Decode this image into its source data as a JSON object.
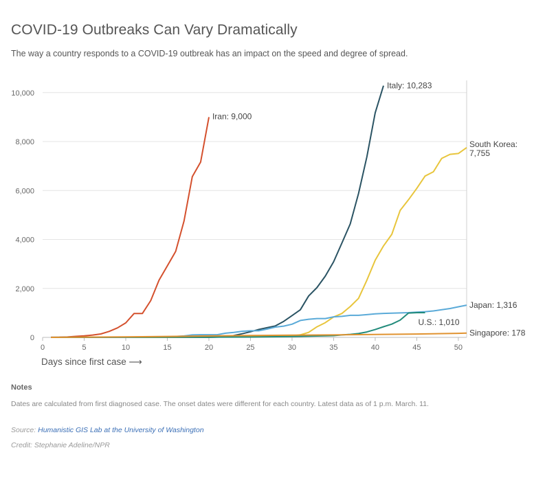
{
  "page": {
    "title": "COVID-19 Outbreaks Can Vary Dramatically",
    "subtitle": "The way a country responds to a COVID-19 outbreak has an impact on the speed and degree of spread.",
    "notes_heading": "Notes",
    "notes_text": "Dates are calculated from first diagnosed case. The onset dates were different for each country. Latest data as of 1 p.m. March. 11.",
    "source_label": "Source:",
    "source_link": "Humanistic GIS Lab at the University of Washington",
    "credit": "Credit: Stephanie Adeline/NPR"
  },
  "chart_data": {
    "type": "line",
    "title": "COVID-19 Outbreaks Can Vary Dramatically",
    "xlabel": "Days since first case ⟶",
    "ylabel": "",
    "xlim": [
      0,
      51
    ],
    "ylim": [
      0,
      10500
    ],
    "x_ticks": [
      0,
      5,
      10,
      15,
      20,
      25,
      30,
      35,
      40,
      45,
      50
    ],
    "y_ticks": [
      0,
      2000,
      4000,
      6000,
      8000,
      10000
    ],
    "y_tick_labels": [
      "0",
      "2,000",
      "4,000",
      "6,000",
      "8,000",
      "10,000"
    ],
    "grid": true,
    "series": [
      {
        "name": "Iran",
        "label": "Iran: 9,000",
        "color": "#d4502d",
        "x": [
          1,
          2,
          3,
          4,
          5,
          6,
          7,
          8,
          9,
          10,
          11,
          12,
          13,
          14,
          15,
          16,
          17,
          18,
          19,
          20
        ],
        "y": [
          2,
          5,
          18,
          43,
          61,
          95,
          141,
          245,
          388,
          593,
          978,
          978,
          1501,
          2336,
          2922,
          3513,
          4747,
          6566,
          7161,
          9000
        ]
      },
      {
        "name": "Italy",
        "label": "Italy: 10,283",
        "color": "#2a5363",
        "x": [
          1,
          5,
          10,
          15,
          20,
          22,
          23,
          24,
          25,
          26,
          27,
          28,
          29,
          30,
          31,
          32,
          33,
          34,
          35,
          36,
          37,
          38,
          39,
          40,
          41
        ],
        "y": [
          2,
          3,
          3,
          3,
          3,
          20,
          79,
          150,
          229,
          322,
          400,
          470,
          655,
          889,
          1128,
          1694,
          2036,
          2502,
          3089,
          3858,
          4636,
          5883,
          7375,
          9172,
          10283
        ]
      },
      {
        "name": "South Korea",
        "label": "South Korea: 7,755",
        "color": "#e8c53c",
        "x": [
          1,
          10,
          20,
          25,
          30,
          31,
          32,
          33,
          34,
          35,
          36,
          37,
          38,
          39,
          40,
          41,
          42,
          43,
          44,
          45,
          46,
          47,
          48,
          49,
          50,
          51
        ],
        "y": [
          1,
          3,
          10,
          30,
          60,
          104,
          204,
          433,
          602,
          833,
          977,
          1261,
          1595,
          2337,
          3150,
          3736,
          4212,
          5186,
          5621,
          6088,
          6593,
          6767,
          7313,
          7478,
          7513,
          7755
        ]
      },
      {
        "name": "Japan",
        "label": "Japan: 1,316",
        "color": "#5aaad8",
        "x": [
          1,
          10,
          15,
          16,
          17,
          18,
          19,
          20,
          21,
          22,
          23,
          24,
          25,
          26,
          27,
          28,
          29,
          30,
          31,
          32,
          33,
          34,
          35,
          36,
          37,
          38,
          39,
          40,
          41,
          42,
          43,
          44,
          45,
          46,
          47,
          48,
          49,
          50,
          51
        ],
        "y": [
          1,
          3,
          20,
          40,
          60,
          100,
          110,
          110,
          110,
          170,
          205,
          250,
          270,
          270,
          340,
          420,
          460,
          540,
          690,
          740,
          770,
          770,
          840,
          860,
          900,
          900,
          930,
          960,
          980,
          990,
          1000,
          1010,
          1030,
          1050,
          1080,
          1130,
          1180,
          1250,
          1316
        ]
      },
      {
        "name": "U.S.",
        "label": "U.S.: 1,010",
        "color": "#228b7b",
        "x": [
          1,
          10,
          20,
          25,
          30,
          35,
          36,
          37,
          38,
          39,
          40,
          41,
          42,
          43,
          44,
          45,
          46
        ],
        "y": [
          1,
          5,
          12,
          15,
          35,
          70,
          100,
          124,
          158,
          221,
          319,
          435,
          541,
          704,
          994,
          1010,
          1010
        ]
      },
      {
        "name": "Singapore",
        "label": "Singapore: 178",
        "color": "#e0922f",
        "x": [
          1,
          5,
          10,
          15,
          20,
          25,
          30,
          35,
          40,
          45,
          50,
          51
        ],
        "y": [
          1,
          10,
          20,
          40,
          60,
          75,
          90,
          102,
          117,
          138,
          166,
          178
        ]
      }
    ]
  }
}
